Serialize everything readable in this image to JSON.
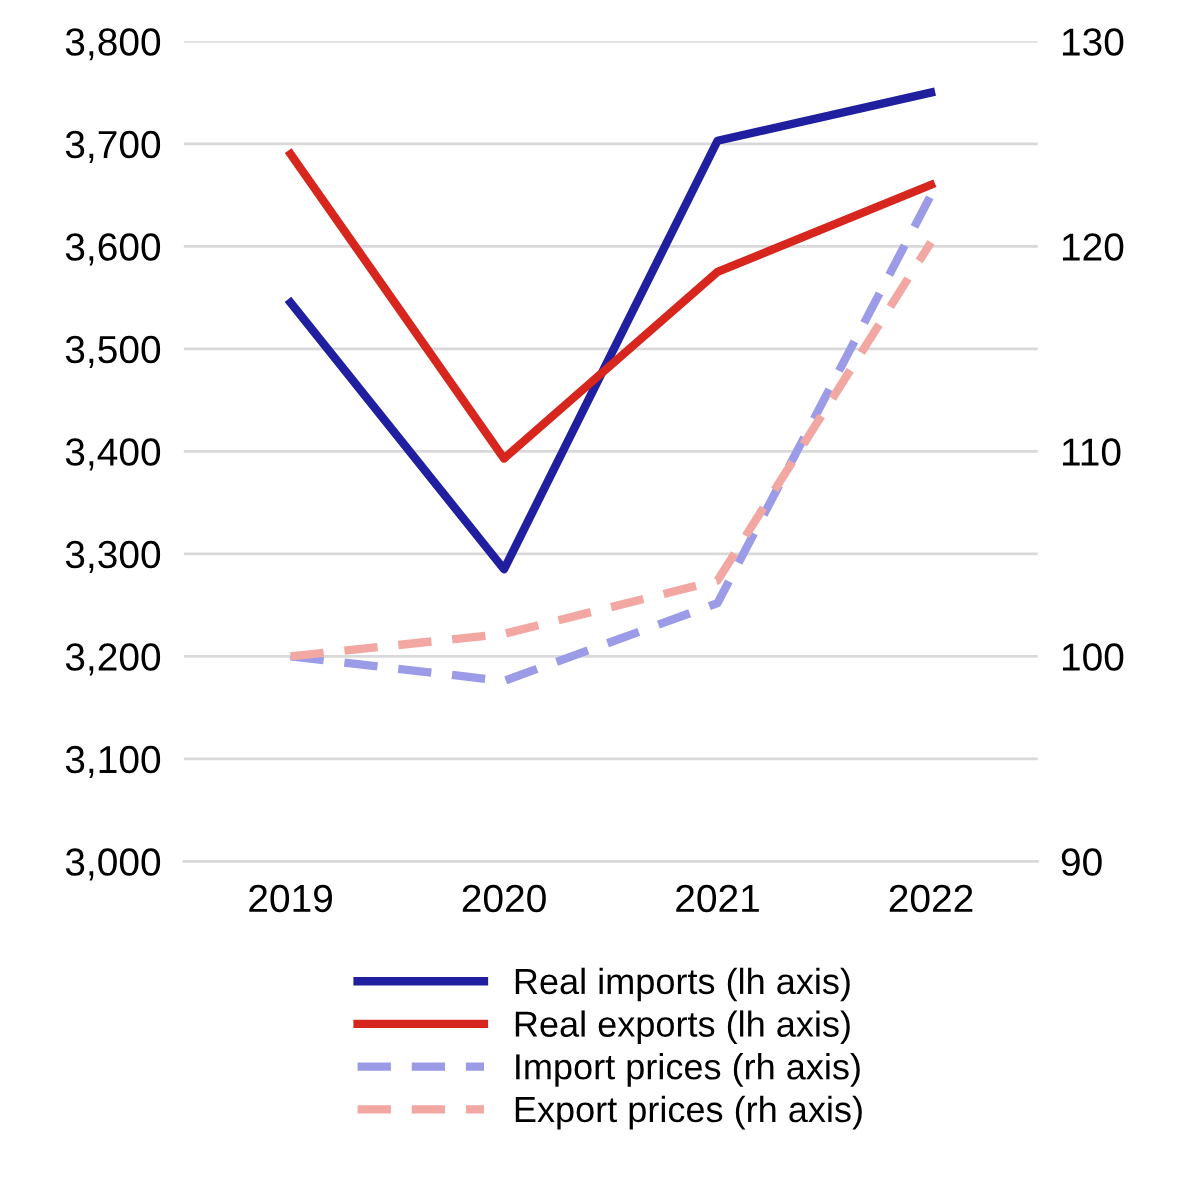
{
  "chart_data": {
    "type": "line",
    "categories": [
      "2019",
      "2020",
      "2021",
      "2022"
    ],
    "series": [
      {
        "name": "Real imports (lh axis)",
        "color": "#1f1fa0",
        "values": [
          3545,
          3285,
          3703,
          3750
        ]
      },
      {
        "name": "Real exports (lh axis)",
        "color": "#d7261e",
        "values": [
          3690,
          3393,
          3575,
          3660
        ]
      },
      {
        "name": "Import prices (rh axis)",
        "color": "#9b9be8",
        "values": [
          100,
          98.8,
          102.6,
          122.5
        ],
        "axis": "y2",
        "line_style": "dashed"
      },
      {
        "name": "Export prices (rh axis)",
        "color": "#f2a7a3",
        "values": [
          100,
          101.1,
          103.7,
          120.2
        ],
        "axis": "y2",
        "line_style": "dashed"
      }
    ],
    "ylim": [
      3000,
      3800
    ],
    "yticks": [
      {
        "value": 3000,
        "label": "3,000"
      },
      {
        "value": 3100,
        "label": "3,100"
      },
      {
        "value": 3200,
        "label": "3,200"
      },
      {
        "value": 3300,
        "label": "3,300"
      },
      {
        "value": 3400,
        "label": "3,400"
      },
      {
        "value": 3500,
        "label": "3,500"
      },
      {
        "value": 3600,
        "label": "3,600"
      },
      {
        "value": 3700,
        "label": "3,700"
      },
      {
        "value": 3800,
        "label": "3,800"
      }
    ],
    "y2lim": [
      90,
      130
    ],
    "y2ticks": [
      90,
      100,
      110,
      120,
      130
    ],
    "grid": "y",
    "legend": "bottom",
    "marker": "none"
  }
}
